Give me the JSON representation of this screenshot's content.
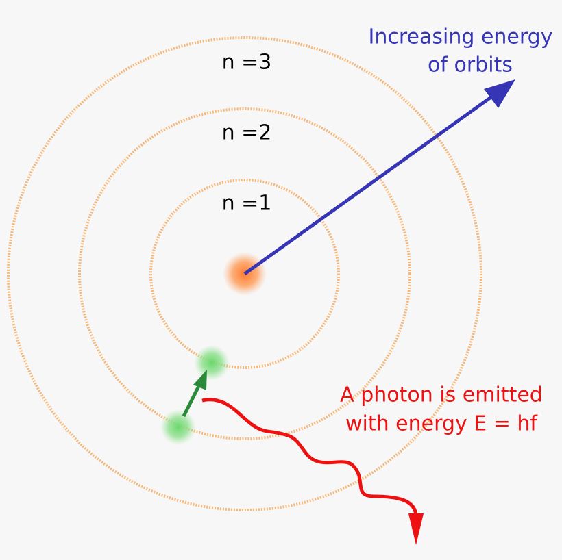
{
  "orbits": [
    {
      "label": "n =1"
    },
    {
      "label": "n =2"
    },
    {
      "label": "n =3"
    }
  ],
  "energy_label": {
    "line1": "Increasing energy",
    "line2": "of orbits"
  },
  "photon_label": {
    "line1": "A photon is emitted",
    "line2": "with energy E = hf"
  }
}
